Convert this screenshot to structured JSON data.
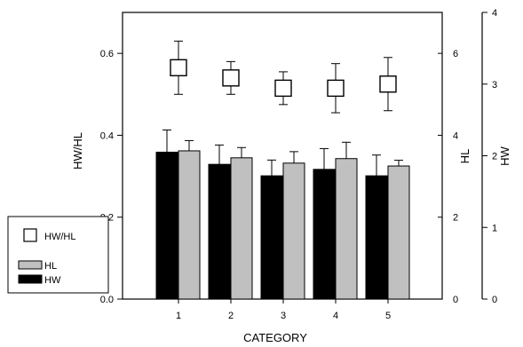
{
  "chart_data": {
    "type": "bar",
    "xlabel": "CATEGORY",
    "categories": [
      "1",
      "2",
      "3",
      "4",
      "5"
    ],
    "axes": {
      "left": {
        "label": "HW/HL",
        "range": [
          0,
          0.7
        ],
        "ticks": [
          "0.0",
          "0.2",
          "0.4",
          "0.6"
        ]
      },
      "right_inner": {
        "label": "HL",
        "range": [
          0,
          7
        ],
        "ticks": [
          "0",
          "2",
          "4",
          "6"
        ]
      },
      "right_outer": {
        "label": "HW",
        "range": [
          0,
          4
        ],
        "ticks": [
          "0",
          "1",
          "2",
          "3",
          "4"
        ]
      }
    },
    "series": [
      {
        "name": "HW",
        "kind": "bar",
        "axis": "right_outer",
        "color": "#000000",
        "values": [
          2.05,
          1.88,
          1.72,
          1.81,
          1.72
        ],
        "errors": [
          0.31,
          0.27,
          0.22,
          0.29,
          0.29
        ]
      },
      {
        "name": "HL",
        "kind": "bar",
        "axis": "right_inner",
        "color": "#c0c0c0",
        "values": [
          3.62,
          3.45,
          3.32,
          3.43,
          3.25
        ],
        "errors": [
          0.25,
          0.25,
          0.28,
          0.4,
          0.14
        ]
      },
      {
        "name": "HW/HL",
        "kind": "marker",
        "axis": "left",
        "color": "#ffffff",
        "values": [
          0.565,
          0.54,
          0.515,
          0.515,
          0.525
        ],
        "errors": [
          0.065,
          0.04,
          0.04,
          0.06,
          0.065
        ]
      }
    ],
    "legend": {
      "position": "left",
      "entries": [
        "HW/HL",
        "HL",
        "HW"
      ]
    }
  }
}
